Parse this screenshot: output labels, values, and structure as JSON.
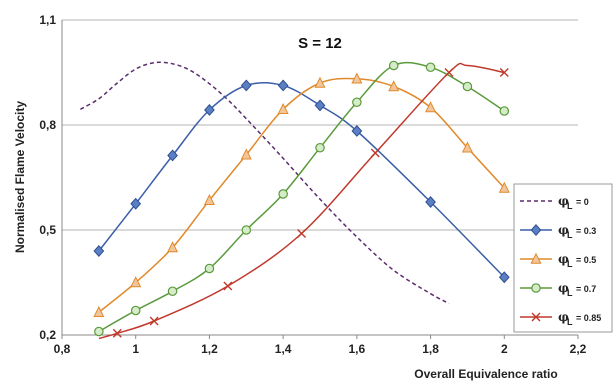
{
  "chart_data": {
    "type": "line",
    "title": "S = 12",
    "xlabel": "Overall Equivalence ratio",
    "ylabel": "Normalised Flame Velocity",
    "xlim": [
      0.8,
      2.2
    ],
    "ylim": [
      0.2,
      1.1
    ],
    "xticks": [
      "0,8",
      "1",
      "1,2",
      "1,4",
      "1,6",
      "1,8",
      "2",
      "2,2"
    ],
    "yticks": [
      "0,2",
      "0,5",
      "0,8",
      "1,1"
    ],
    "grid": "horizontal",
    "legend_position": "right",
    "legend_symbol": "φ",
    "legend_subscript": "L",
    "series": [
      {
        "name": "= 0",
        "color": "#5b2c6f",
        "marker": "none",
        "dashed": true,
        "x": [
          0.85,
          0.9,
          0.95,
          1.0,
          1.05,
          1.1,
          1.15,
          1.2,
          1.25,
          1.3,
          1.4,
          1.5,
          1.6,
          1.7,
          1.8,
          1.85
        ],
        "y": [
          0.845,
          0.875,
          0.92,
          0.96,
          0.978,
          0.975,
          0.955,
          0.918,
          0.872,
          0.818,
          0.705,
          0.588,
          0.48,
          0.385,
          0.318,
          0.29
        ]
      },
      {
        "name": "= 0.3",
        "color": "#3a5ea8",
        "marker": "diamond",
        "dashed": false,
        "x": [
          0.9,
          1.0,
          1.1,
          1.2,
          1.3,
          1.4,
          1.5,
          1.6,
          1.8,
          2.0
        ],
        "y": [
          0.44,
          0.575,
          0.713,
          0.843,
          0.913,
          0.913,
          0.856,
          0.783,
          0.58,
          0.365
        ]
      },
      {
        "name": "= 0.5",
        "color": "#e08a2c",
        "marker": "triangle",
        "dashed": false,
        "x": [
          0.9,
          1.0,
          1.1,
          1.2,
          1.3,
          1.4,
          1.5,
          1.6,
          1.7,
          1.8,
          1.9,
          2.0
        ],
        "y": [
          0.265,
          0.35,
          0.45,
          0.585,
          0.715,
          0.845,
          0.92,
          0.932,
          0.91,
          0.85,
          0.735,
          0.62
        ]
      },
      {
        "name": "= 0.7",
        "color": "#5a9a3c",
        "marker": "circle",
        "dashed": false,
        "x": [
          0.9,
          1.0,
          1.1,
          1.2,
          1.3,
          1.4,
          1.5,
          1.6,
          1.7,
          1.8,
          1.9,
          2.0
        ],
        "y": [
          0.21,
          0.27,
          0.325,
          0.39,
          0.5,
          0.603,
          0.735,
          0.865,
          0.97,
          0.965,
          0.91,
          0.84
        ]
      },
      {
        "name": "= 0.85",
        "color": "#c0392b",
        "marker": "x",
        "dashed": false,
        "x": [
          0.9,
          0.95,
          1.05,
          1.25,
          1.45,
          1.65,
          1.85,
          1.9,
          2.0
        ],
        "y": [
          0.19,
          0.205,
          0.24,
          0.34,
          0.49,
          0.72,
          0.95,
          0.97,
          0.95
        ]
      }
    ]
  }
}
